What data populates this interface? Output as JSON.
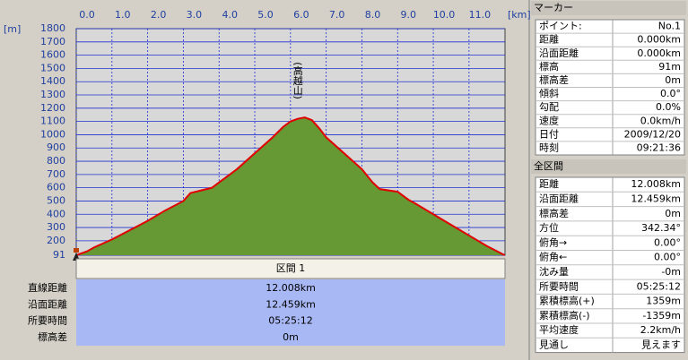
{
  "chart_data": {
    "type": "area",
    "x_label": "[km]",
    "y_label": "[m]",
    "peak_label": "(高越山)",
    "x": [
      0,
      0.3,
      0.5,
      1.0,
      1.5,
      2.0,
      2.5,
      3.0,
      3.2,
      3.5,
      3.8,
      4.0,
      4.5,
      5.0,
      5.5,
      5.8,
      6.0,
      6.2,
      6.4,
      6.6,
      6.8,
      7.0,
      7.5,
      8.0,
      8.3,
      8.5,
      9.0,
      9.3,
      9.5,
      10.0,
      10.5,
      11.0,
      11.5,
      12.0
    ],
    "values": [
      91,
      120,
      150,
      210,
      280,
      350,
      430,
      500,
      560,
      580,
      600,
      640,
      740,
      860,
      980,
      1060,
      1100,
      1120,
      1130,
      1110,
      1050,
      980,
      860,
      740,
      640,
      590,
      570,
      510,
      480,
      400,
      320,
      240,
      160,
      91
    ],
    "color": "#e00000",
    "fill": "#669933",
    "background": "#d8d8d8",
    "grid_color": "#2030d0",
    "xlim": [
      0,
      12.008
    ],
    "xticks": [
      {
        "value": 0,
        "label": "0.0"
      },
      {
        "value": 1,
        "label": "1.0"
      },
      {
        "value": 2,
        "label": "2.0"
      },
      {
        "value": 3,
        "label": "3.0"
      },
      {
        "value": 4,
        "label": "4.0"
      },
      {
        "value": 5,
        "label": "5.0"
      },
      {
        "value": 6,
        "label": "6.0"
      },
      {
        "value": 7,
        "label": "7.0"
      },
      {
        "value": 8,
        "label": "8.0"
      },
      {
        "value": 9,
        "label": "9.0"
      },
      {
        "value": 10,
        "label": "10.0"
      },
      {
        "value": 11,
        "label": "11.0"
      }
    ],
    "ylim": [
      91,
      1800
    ],
    "yticks": [
      91,
      200,
      300,
      400,
      500,
      600,
      700,
      800,
      900,
      1000,
      1100,
      1200,
      1300,
      1400,
      1500,
      1600,
      1700,
      1800
    ],
    "grid": true
  },
  "section": {
    "title": "区間 1",
    "rows": [
      [
        "直線距離",
        "12.008km"
      ],
      [
        "沿面距離",
        "12.459km"
      ],
      [
        "所要時間",
        "05:25:12"
      ],
      [
        "標高差",
        "0m"
      ]
    ]
  },
  "marker_panel": {
    "title": "マーカー",
    "rows": [
      [
        "ポイント:",
        "No.1"
      ],
      [
        "距離",
        "0.000km"
      ],
      [
        "沿面距離",
        "0.000km"
      ],
      [
        "標高",
        "91m"
      ],
      [
        "標高差",
        "0m"
      ],
      [
        "傾斜",
        "0.0°"
      ],
      [
        "勾配",
        "0.0%"
      ],
      [
        "速度",
        "0.0km/h"
      ],
      [
        "日付",
        "2009/12/20"
      ],
      [
        "時刻",
        "09:21:36"
      ]
    ]
  },
  "total_panel": {
    "title": "全区間",
    "rows": [
      [
        "距離",
        "12.008km"
      ],
      [
        "沿面距離",
        "12.459km"
      ],
      [
        "標高差",
        "0m"
      ],
      [
        "方位",
        "342.34°"
      ],
      [
        "俯角→",
        "0.00°"
      ],
      [
        "俯角←",
        "0.00°"
      ],
      [
        "沈み量",
        "-0m"
      ],
      [
        "所要時間",
        "05:25:12"
      ],
      [
        "累積標高(+)",
        "1359m"
      ],
      [
        "累積標高(-)",
        "-1359m"
      ],
      [
        "平均速度",
        "2.2km/h"
      ],
      [
        "見通し",
        "見えます"
      ]
    ]
  }
}
